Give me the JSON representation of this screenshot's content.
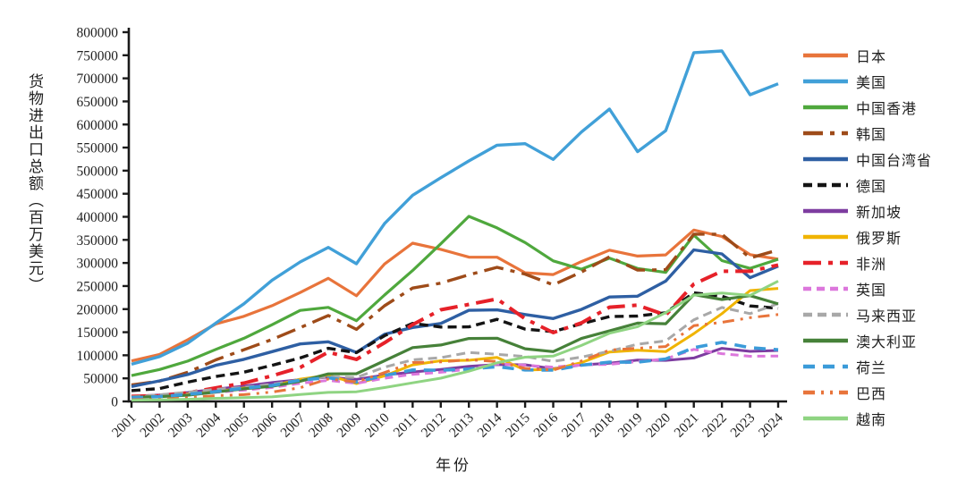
{
  "chart_data": {
    "type": "line",
    "title": "",
    "xlabel": "年份",
    "ylabel": "货物进出口总额（百万美元）",
    "x": [
      "2001",
      "2002",
      "2003",
      "2004",
      "2005",
      "2006",
      "2007",
      "2008",
      "2009",
      "2010",
      "2011",
      "2012",
      "2013",
      "2014",
      "2015",
      "2016",
      "2017",
      "2018",
      "2019",
      "2020",
      "2021",
      "2022",
      "2023",
      "2024"
    ],
    "ylim": [
      0,
      800000
    ],
    "ytick_step": 50000,
    "grid": false,
    "legend_position": "right",
    "series": [
      {
        "name": "日本",
        "color": "#E8743B",
        "dash": "",
        "width": 3.2,
        "values": [
          87800,
          101900,
          133600,
          167900,
          184400,
          207400,
          236000,
          266800,
          228900,
          297800,
          342900,
          329500,
          312600,
          312400,
          278700,
          274800,
          303000,
          327700,
          315000,
          317500,
          371400,
          357400,
          318000,
          308300
        ]
      },
      {
        "name": "美国",
        "color": "#41A0D8",
        "dash": "",
        "width": 3.4,
        "values": [
          80500,
          97200,
          126300,
          169600,
          211600,
          262700,
          302100,
          333700,
          298300,
          385300,
          446700,
          484700,
          521000,
          555100,
          558400,
          524300,
          583700,
          633500,
          541200,
          586700,
          755600,
          759400,
          664500,
          688300
        ]
      },
      {
        "name": "中国香港",
        "color": "#4FA83D",
        "dash": "",
        "width": 3.2,
        "values": [
          56000,
          69200,
          87400,
          112700,
          136700,
          166200,
          197200,
          203700,
          174900,
          230600,
          283500,
          341500,
          401000,
          376000,
          344300,
          304600,
          286500,
          310600,
          288000,
          279600,
          360200,
          305100,
          288200,
          308000
        ]
      },
      {
        "name": "韩国",
        "color": "#9E4B19",
        "dash": "22 8 5 8",
        "width": 3.4,
        "values": [
          35900,
          44100,
          63200,
          90000,
          111900,
          134300,
          159900,
          186100,
          156200,
          207200,
          245600,
          256300,
          274200,
          290500,
          275800,
          252600,
          280300,
          313400,
          284500,
          285300,
          362400,
          362300,
          310800,
          328100
        ]
      },
      {
        "name": "中国台湾省",
        "color": "#2E5FA3",
        "dash": "",
        "width": 3.4,
        "values": [
          32300,
          44600,
          58400,
          78300,
          91200,
          107800,
          124500,
          129200,
          106200,
          145400,
          160100,
          168900,
          197300,
          198300,
          188200,
          179600,
          199400,
          226200,
          228000,
          260800,
          328300,
          319700,
          268000,
          293000
        ]
      },
      {
        "name": "德国",
        "color": "#141414",
        "dash": "10 6",
        "width": 3.4,
        "values": [
          23500,
          27800,
          41900,
          54100,
          63300,
          78200,
          94100,
          115000,
          105700,
          142400,
          169200,
          161100,
          161600,
          177800,
          156800,
          151300,
          168100,
          183900,
          184900,
          192200,
          235300,
          228000,
          206800,
          201900
        ]
      },
      {
        "name": "新加坡",
        "color": "#7D3CA0",
        "dash": "",
        "width": 3,
        "values": [
          10900,
          14000,
          19300,
          26700,
          33200,
          40900,
          47200,
          52400,
          47900,
          57100,
          63700,
          69300,
          75900,
          79800,
          79500,
          71000,
          79200,
          82800,
          89600,
          89000,
          94200,
          115100,
          108400,
          110500
        ]
      },
      {
        "name": "俄罗斯",
        "color": "#F0B400",
        "dash": "",
        "width": 3,
        "values": [
          10700,
          11900,
          15800,
          21200,
          29100,
          33400,
          48200,
          56800,
          38800,
          55400,
          79200,
          88200,
          89200,
          95300,
          68000,
          69500,
          84000,
          107100,
          110800,
          107800,
          146900,
          190300,
          240100,
          244800
        ]
      },
      {
        "name": "非洲",
        "color": "#E62129",
        "dash": "20 8 5 8",
        "width": 4,
        "values": [
          10800,
          12400,
          18500,
          29500,
          39700,
          55500,
          73600,
          106800,
          91100,
          127000,
          166300,
          198500,
          210200,
          221900,
          179000,
          149100,
          170000,
          204200,
          208700,
          187000,
          254300,
          282000,
          282100,
          295600
        ]
      },
      {
        "name": "英国",
        "color": "#DC77DC",
        "dash": "9 6",
        "width": 3,
        "values": [
          10300,
          11400,
          14400,
          19700,
          24500,
          30300,
          39400,
          45600,
          39100,
          50100,
          58700,
          63100,
          70000,
          80900,
          78500,
          74300,
          79000,
          80400,
          86300,
          92300,
          112800,
          103500,
          97900,
          98400
        ]
      },
      {
        "name": "马来西亚",
        "color": "#A8A8A8",
        "dash": "10 6",
        "width": 3,
        "values": [
          9400,
          14300,
          20100,
          26300,
          30700,
          37100,
          46400,
          53500,
          52000,
          74200,
          90000,
          94800,
          106100,
          102000,
          97400,
          86800,
          96000,
          108700,
          124000,
          131200,
          176800,
          203600,
          190200,
          212000
        ]
      },
      {
        "name": "澳大利亚",
        "color": "#468139",
        "dash": "",
        "width": 3.2,
        "values": [
          9000,
          10400,
          13600,
          20400,
          27300,
          32900,
          43800,
          59700,
          60100,
          88100,
          116600,
          122300,
          136400,
          136900,
          114000,
          107800,
          136300,
          152800,
          169600,
          168300,
          231200,
          220900,
          229200,
          211300
        ]
      },
      {
        "name": "荷兰",
        "color": "#3B9BD9",
        "dash": "13 9",
        "width": 3.6,
        "values": [
          7900,
          10500,
          15400,
          21400,
          28800,
          34500,
          46300,
          51300,
          41800,
          56200,
          68200,
          67600,
          70100,
          75200,
          68200,
          67800,
          78400,
          85200,
          85100,
          92000,
          116400,
          128000,
          116500,
          111900
        ]
      },
      {
        "name": "巴西",
        "color": "#E8743B",
        "dash": "13 7 3 7 3 7",
        "width": 3,
        "values": [
          3700,
          4500,
          8000,
          12400,
          14800,
          20300,
          29700,
          48700,
          42400,
          62500,
          84200,
          85700,
          90300,
          86600,
          71600,
          67800,
          87500,
          111200,
          115300,
          118900,
          164100,
          171500,
          181500,
          188200
        ]
      },
      {
        "name": "越南",
        "color": "#8FD482",
        "dash": "",
        "width": 3,
        "values": [
          2800,
          3300,
          4600,
          6700,
          8200,
          9900,
          15100,
          19500,
          21000,
          30100,
          40200,
          50400,
          65500,
          83600,
          95800,
          98200,
          121300,
          147800,
          162000,
          192300,
          230200,
          234900,
          229800,
          260700
        ]
      }
    ]
  }
}
